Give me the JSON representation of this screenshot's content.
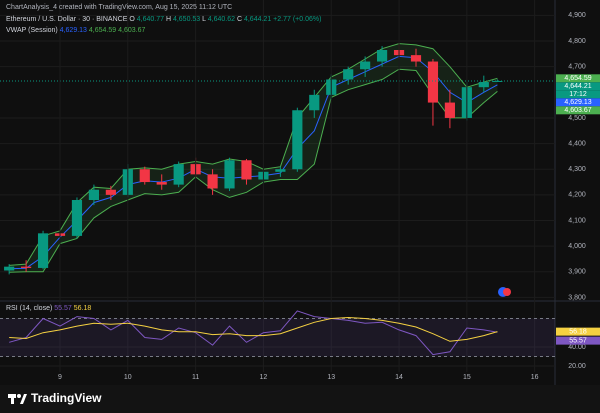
{
  "header": {
    "attribution": "ChartAnalysis_4 created with TradingView.com, Aug 15, 2025 11:12 UTC",
    "symbol": "Ethereum / U.S. Dollar · 30 · BINANCE",
    "ohlc_keys": [
      "O",
      "H",
      "L",
      "C"
    ],
    "ohlc_labels": [
      "4,640.77",
      "4,650.53",
      "4,640.62",
      "4,644.21"
    ],
    "change": "+2.77 (+0.06%)",
    "indicator": "VWAP (Session)",
    "rsi_indicator": "RSI (14, close)",
    "brand": "TradingView"
  },
  "chart_data": [
    {
      "type": "candlestick",
      "x": [
        8.25,
        8.5,
        8.75,
        9.0,
        9.25,
        9.5,
        9.75,
        10.0,
        10.25,
        10.5,
        10.75,
        11.0,
        11.25,
        11.5,
        11.75,
        12.0,
        12.25,
        12.5,
        12.75,
        13.0,
        13.25,
        13.5,
        13.75,
        14.0,
        14.25,
        14.5,
        14.75,
        15.0,
        15.25,
        15.45
      ],
      "candles": [
        [
          3905,
          3930,
          3890,
          3920
        ],
        [
          3920,
          3945,
          3900,
          3915
        ],
        [
          3915,
          4060,
          3910,
          4050
        ],
        [
          4050,
          4080,
          4020,
          4040
        ],
        [
          4040,
          4190,
          4030,
          4180
        ],
        [
          4180,
          4240,
          4160,
          4220
        ],
        [
          4220,
          4235,
          4180,
          4200
        ],
        [
          4200,
          4320,
          4190,
          4300
        ],
        [
          4300,
          4310,
          4240,
          4250
        ],
        [
          4250,
          4280,
          4220,
          4240
        ],
        [
          4240,
          4330,
          4230,
          4320
        ],
        [
          4320,
          4345,
          4270,
          4280
        ],
        [
          4280,
          4300,
          4200,
          4225
        ],
        [
          4225,
          4345,
          4215,
          4335
        ],
        [
          4335,
          4340,
          4240,
          4260
        ],
        [
          4260,
          4300,
          4245,
          4290
        ],
        [
          4290,
          4310,
          4270,
          4300
        ],
        [
          4300,
          4540,
          4290,
          4530
        ],
        [
          4530,
          4610,
          4500,
          4590
        ],
        [
          4590,
          4670,
          4570,
          4650
        ],
        [
          4650,
          4700,
          4630,
          4690
        ],
        [
          4690,
          4740,
          4660,
          4720
        ],
        [
          4720,
          4780,
          4700,
          4765
        ],
        [
          4765,
          4790,
          4730,
          4745
        ],
        [
          4745,
          4770,
          4700,
          4720
        ],
        [
          4720,
          4730,
          4470,
          4560
        ],
        [
          4560,
          4610,
          4460,
          4500
        ],
        [
          4500,
          4640,
          4490,
          4620
        ],
        [
          4620,
          4665,
          4600,
          4640
        ],
        [
          4640.77,
          4650.53,
          4640.62,
          4644.21
        ]
      ],
      "up_color": "#089981",
      "down_color": "#f23645",
      "series": [
        {
          "color": "#2962ff",
          "values": [
            3912,
            3914,
            3960,
            4035,
            4100,
            4170,
            4190,
            4240,
            4255,
            4250,
            4265,
            4300,
            4270,
            4265,
            4270,
            4275,
            4285,
            4380,
            4450,
            4620,
            4650,
            4680,
            4710,
            4740,
            4735,
            4680,
            4600,
            4560,
            4600,
            4629.13
          ]
        },
        {
          "color": "#4caf50",
          "values": [
            3925,
            3930,
            4040,
            4060,
            4170,
            4230,
            4225,
            4300,
            4305,
            4300,
            4320,
            4330,
            4320,
            4340,
            4330,
            4300,
            4310,
            4500,
            4580,
            4660,
            4690,
            4730,
            4770,
            4790,
            4785,
            4770,
            4700,
            4620,
            4640,
            4654.59
          ]
        },
        {
          "color": "#4caf50",
          "values": [
            3898,
            3900,
            3900,
            4010,
            4030,
            4110,
            4155,
            4180,
            4205,
            4200,
            4210,
            4270,
            4220,
            4190,
            4210,
            4250,
            4260,
            4260,
            4320,
            4580,
            4610,
            4630,
            4650,
            4690,
            4685,
            4590,
            4500,
            4500,
            4560,
            4603.67
          ]
        }
      ],
      "band_fill": "rgba(76,175,80,0.12)",
      "xlim": [
        8.115,
        16.3
      ],
      "ylim": [
        3790,
        4960
      ],
      "yticks": [
        {
          "value": 3800,
          "label": "3,800"
        },
        {
          "value": 3900,
          "label": "3,900"
        },
        {
          "value": 4000,
          "label": "4,000"
        },
        {
          "value": 4100,
          "label": "4,100"
        },
        {
          "value": 4200,
          "label": "4,200"
        },
        {
          "value": 4300,
          "label": "4,300"
        },
        {
          "value": 4400,
          "label": "4,400"
        },
        {
          "value": 4500,
          "label": "4,500"
        },
        {
          "value": 4700,
          "label": "4,700"
        },
        {
          "value": 4800,
          "label": "4,800"
        },
        {
          "value": 4900,
          "label": "4,900"
        }
      ],
      "price_labels": [
        {
          "value": 4654.59,
          "label": "4,654.59",
          "color": "#4caf50"
        },
        {
          "value": 4644.21,
          "label": "4,644.21",
          "color": "#089981"
        },
        {
          "value": 4629.13,
          "label": "4,629.13",
          "color": "#2962ff"
        },
        {
          "value": 4603.67,
          "label": "4,603.67",
          "color": "#4caf50"
        }
      ],
      "countdown": "17:12",
      "grid": true
    },
    {
      "type": "line",
      "x": [
        8.25,
        8.5,
        8.75,
        9.0,
        9.25,
        9.5,
        9.75,
        10.0,
        10.25,
        10.5,
        10.75,
        11.0,
        11.25,
        11.5,
        11.75,
        12.0,
        12.25,
        12.5,
        12.75,
        13.0,
        13.25,
        13.5,
        13.75,
        14.0,
        14.25,
        14.5,
        14.75,
        15.0,
        15.25,
        15.45
      ],
      "series": [
        {
          "color": "#7e57c2",
          "values": [
            45,
            50,
            70,
            62,
            72,
            70,
            58,
            68,
            50,
            48,
            60,
            55,
            42,
            62,
            45,
            55,
            57,
            78,
            72,
            70,
            68,
            65,
            66,
            58,
            52,
            32,
            35,
            60,
            58,
            55.57
          ]
        },
        {
          "color": "#f5d142",
          "values": [
            50,
            49,
            55,
            58,
            62,
            65,
            64,
            65,
            62,
            58,
            56,
            56,
            53,
            54,
            52,
            52,
            54,
            60,
            66,
            70,
            71,
            70,
            68,
            65,
            61,
            54,
            46,
            48,
            52,
            56.18
          ]
        }
      ],
      "band": [
        30,
        70
      ],
      "band_fill": "rgba(126,87,194,0.12)",
      "xlim": [
        8.115,
        16.3
      ],
      "ylim": [
        13.7,
        86.3
      ],
      "xticks": [
        9,
        10,
        11,
        12,
        13,
        14,
        15,
        16
      ],
      "yticks": [
        {
          "value": 20,
          "label": "20.00"
        },
        {
          "value": 40,
          "label": "40.00"
        }
      ],
      "price_labels": [
        {
          "value": 56.18,
          "label": "56.18",
          "color": "#f5d142"
        },
        {
          "value": 55.57,
          "label": "55.57",
          "color": "#7e57c2"
        }
      ]
    }
  ]
}
